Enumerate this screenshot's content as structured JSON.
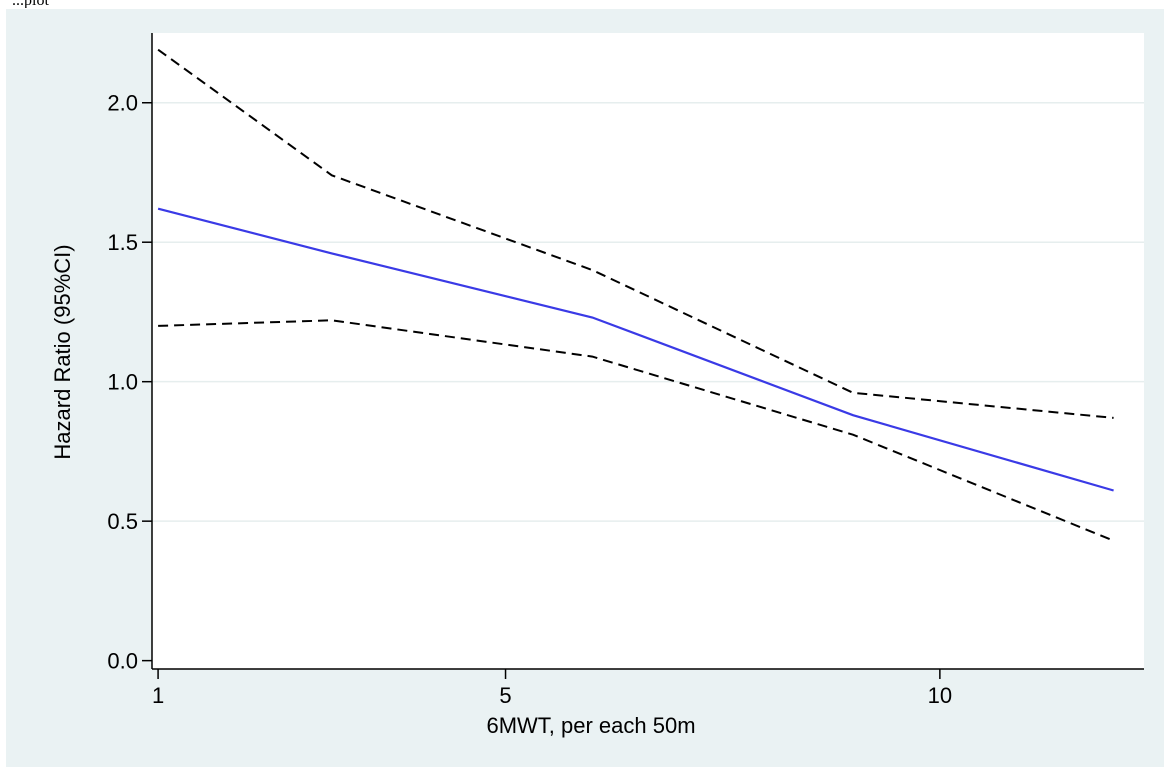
{
  "header_fragment": "...plot",
  "chart_data": {
    "type": "line",
    "title": "",
    "xlabel": "6MWT, per each 50m",
    "ylabel": "Hazard Ratio (95%CI)",
    "xlim": [
      0.93,
      12.35
    ],
    "ylim": [
      -0.03,
      2.25
    ],
    "x_ticks": [
      1,
      5,
      10
    ],
    "x_tick_labels": [
      "1",
      "5",
      "10"
    ],
    "y_ticks": [
      0,
      0.5,
      1.0,
      1.5,
      2.0
    ],
    "y_tick_labels": [
      "0.0",
      "0.5",
      "1.0",
      "1.5",
      "2.0"
    ],
    "grid": "horizontal",
    "legend": "none",
    "series": [
      {
        "role": "estimate",
        "color": "#3a3ae6",
        "dash": "solid",
        "x": [
          1,
          3,
          6,
          9,
          12
        ],
        "y": [
          1.62,
          1.46,
          1.23,
          0.88,
          0.61
        ]
      },
      {
        "role": "upper_ci",
        "color": "#000000",
        "dash": "dashed",
        "x": [
          1,
          3,
          6,
          9,
          12
        ],
        "y": [
          2.19,
          1.74,
          1.4,
          0.96,
          0.87
        ]
      },
      {
        "role": "lower_ci",
        "color": "#000000",
        "dash": "dashed",
        "x": [
          1,
          3,
          6,
          9,
          12
        ],
        "y": [
          1.2,
          1.22,
          1.09,
          0.81,
          0.43
        ]
      }
    ]
  }
}
